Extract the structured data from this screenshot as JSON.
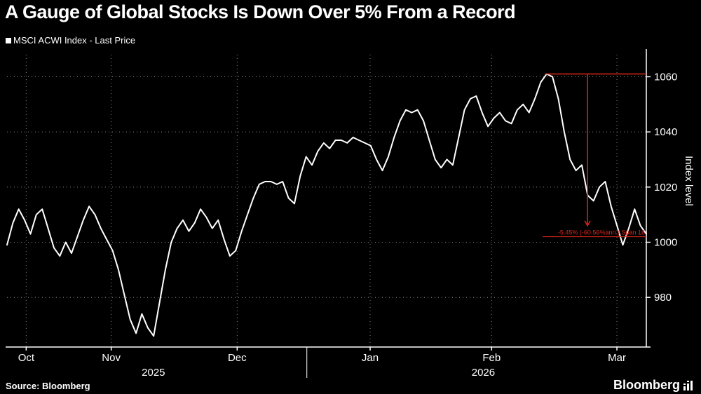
{
  "title": "A Gauge of Global Stocks Is Down Over 5% From a Record",
  "legend": {
    "label": "MSCI ACWI Index - Last Price",
    "marker_color": "#ffffff"
  },
  "source": "Source: Bloomberg",
  "brand": "Bloomberg",
  "colors": {
    "background": "#000000",
    "line": "#ffffff",
    "grid": "#8a8a8a",
    "axis": "#ffffff",
    "annotation": "#d8261a"
  },
  "chart_data": {
    "type": "line",
    "title": "A Gauge of Global Stocks Is Down Over 5% From a Record",
    "ylabel": "Index level",
    "ylim": [
      962,
      1068
    ],
    "yticks": [
      980,
      1000,
      1020,
      1040,
      1060
    ],
    "grid": true,
    "legend_position": "top-left",
    "month_ticks": [
      {
        "label": "Oct",
        "pos": 0.03
      },
      {
        "label": "Nov",
        "pos": 0.163
      },
      {
        "label": "Dec",
        "pos": 0.36
      },
      {
        "label": "Jan",
        "pos": 0.568
      },
      {
        "label": "Feb",
        "pos": 0.758
      },
      {
        "label": "Mar",
        "pos": 0.954
      }
    ],
    "year_labels": [
      {
        "label": "2025",
        "pos": 0.229
      },
      {
        "label": "2026",
        "pos": 0.745
      }
    ],
    "year_divider_pos": 0.469,
    "series": [
      {
        "name": "MSCI ACWI Index - Last Price",
        "color": "#ffffff",
        "values": [
          999,
          1007,
          1012,
          1008,
          1003,
          1010,
          1012,
          1005,
          998,
          995,
          1000,
          996,
          1002,
          1008,
          1013,
          1010,
          1005,
          1001,
          997,
          990,
          981,
          972,
          967,
          974,
          969,
          966,
          978,
          990,
          1000,
          1005,
          1008,
          1004,
          1007,
          1012,
          1009,
          1005,
          1008,
          1001,
          995,
          997,
          1004,
          1010,
          1016,
          1021,
          1022,
          1022,
          1021,
          1022,
          1016,
          1014,
          1024,
          1031,
          1028,
          1033,
          1036,
          1034,
          1037,
          1037,
          1036,
          1038,
          1037,
          1036,
          1035,
          1030,
          1026,
          1031,
          1038,
          1044,
          1048,
          1047,
          1048,
          1044,
          1037,
          1030,
          1027,
          1030,
          1028,
          1038,
          1048,
          1052,
          1053,
          1047,
          1042,
          1045,
          1047,
          1044,
          1043,
          1048,
          1050,
          1047,
          1052,
          1058,
          1061,
          1060,
          1052,
          1040,
          1030,
          1026,
          1028,
          1017,
          1015,
          1020,
          1022,
          1013,
          1006,
          999,
          1005,
          1012,
          1006,
          1003
        ]
      }
    ],
    "annotation": {
      "high_value": 1061,
      "high_line_start": 0.842,
      "arrow_pos": 0.908,
      "arrow_end_value": 1006,
      "low_line_value": 1002,
      "low_line_start": 0.838,
      "label": "-5.45% (-60.56%ann.) Span 16"
    }
  }
}
